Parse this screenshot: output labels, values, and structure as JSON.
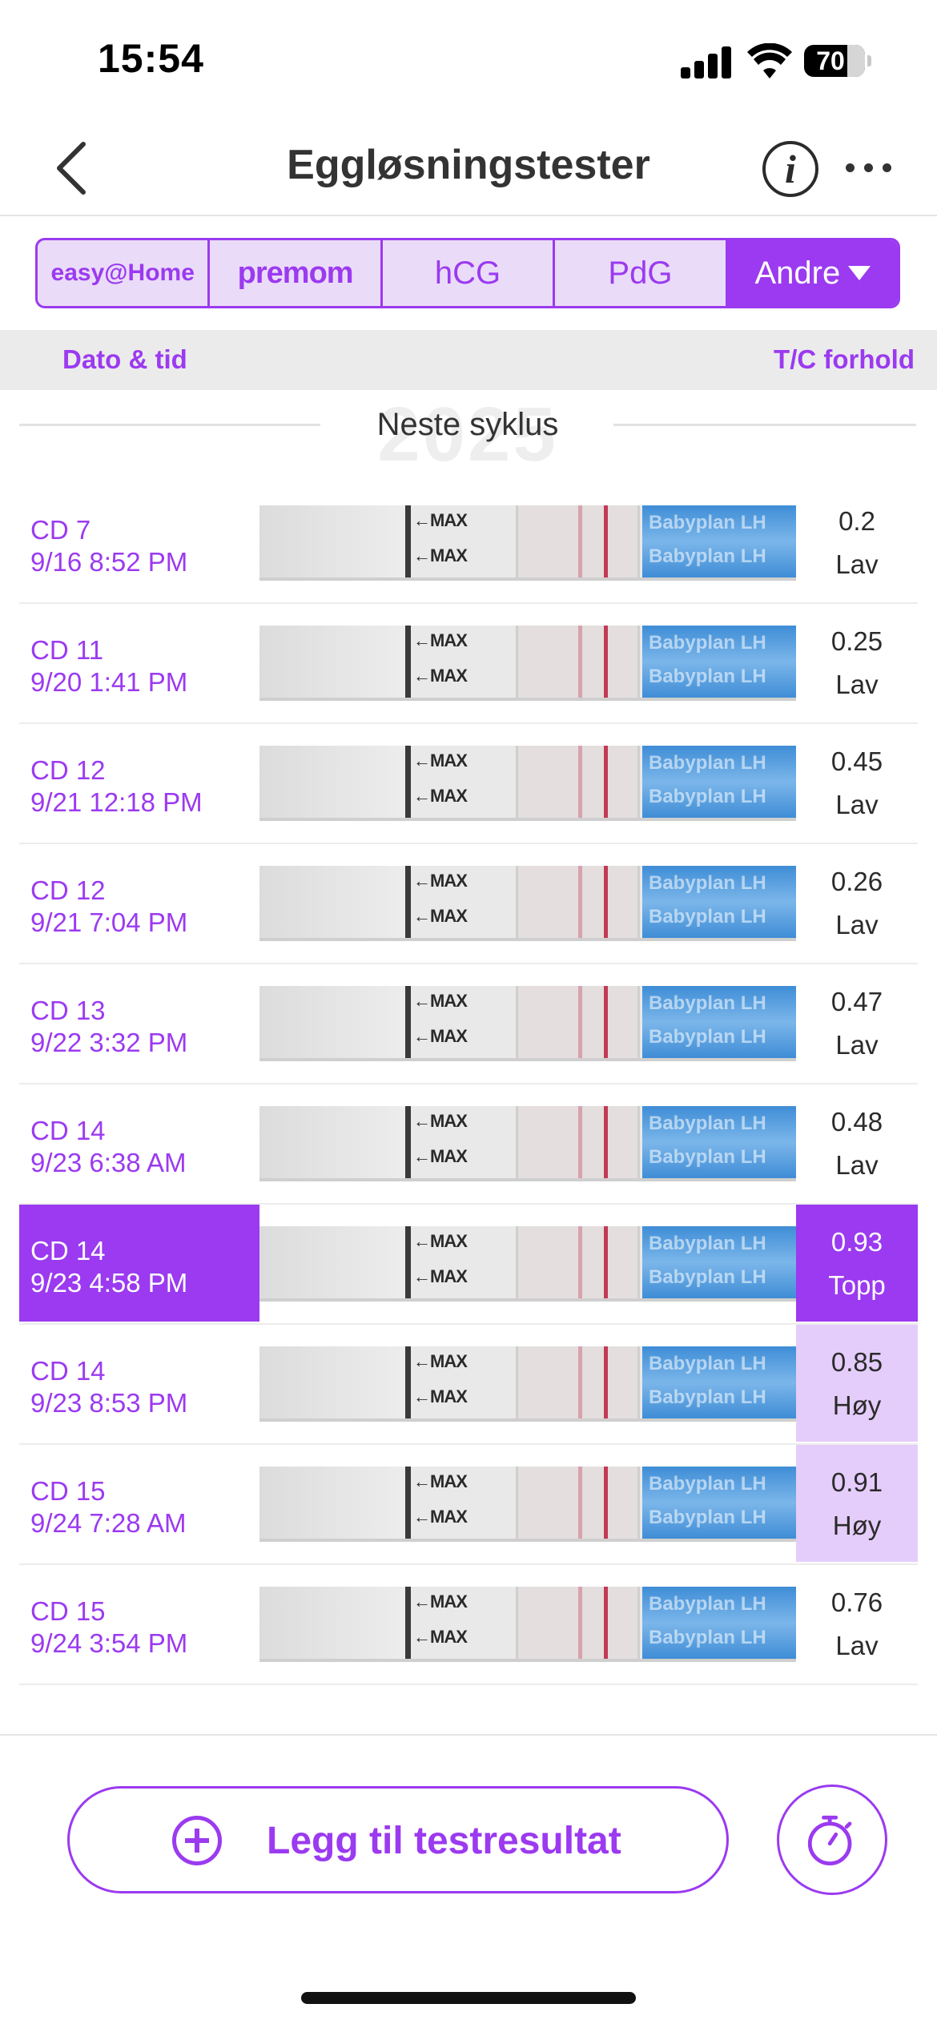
{
  "status_bar": {
    "time": "15:54",
    "battery": "70",
    "icons": [
      "signal-icon",
      "wifi-icon",
      "battery-icon"
    ]
  },
  "nav": {
    "title": "Eggløsningstester",
    "icons": [
      "back-chevron-icon",
      "info-icon",
      "more-icon"
    ]
  },
  "tabs": [
    {
      "label": "easy@Home",
      "selected": false
    },
    {
      "label": "premom",
      "selected": false
    },
    {
      "label": "hCG",
      "selected": false
    },
    {
      "label": "PdG",
      "selected": false
    },
    {
      "label": "Andre",
      "selected": true
    }
  ],
  "columns": {
    "left": "Dato & tid",
    "right": "T/C forhold"
  },
  "cycle": {
    "year": "2025",
    "label": "Neste syklus"
  },
  "rows": [
    {
      "cd": "CD 7",
      "datetime": "9/16 8:52 PM",
      "ratio": "0.2",
      "level": "Lav",
      "state": "normal"
    },
    {
      "cd": "CD 11",
      "datetime": "9/20 1:41 PM",
      "ratio": "0.25",
      "level": "Lav",
      "state": "normal"
    },
    {
      "cd": "CD 12",
      "datetime": "9/21 12:18 PM",
      "ratio": "0.45",
      "level": "Lav",
      "state": "normal"
    },
    {
      "cd": "CD 12",
      "datetime": "9/21 7:04 PM",
      "ratio": "0.26",
      "level": "Lav",
      "state": "normal"
    },
    {
      "cd": "CD 13",
      "datetime": "9/22 3:32 PM",
      "ratio": "0.47",
      "level": "Lav",
      "state": "normal"
    },
    {
      "cd": "CD 14",
      "datetime": "9/23 6:38 AM",
      "ratio": "0.48",
      "level": "Lav",
      "state": "normal"
    },
    {
      "cd": "CD 14",
      "datetime": "9/23 4:58 PM",
      "ratio": "0.93",
      "level": "Topp",
      "state": "peak"
    },
    {
      "cd": "CD 14",
      "datetime": "9/23 8:53 PM",
      "ratio": "0.85",
      "level": "Høy",
      "state": "high"
    },
    {
      "cd": "CD 15",
      "datetime": "9/24 7:28 AM",
      "ratio": "0.91",
      "level": "Høy",
      "state": "high"
    },
    {
      "cd": "CD 15",
      "datetime": "9/24 3:54 PM",
      "ratio": "0.76",
      "level": "Lav",
      "state": "normal"
    }
  ],
  "strip": {
    "max_label": "←MAX",
    "brand_text": "Babyplan LH"
  },
  "bottom": {
    "add_label": "Legg til testresultat",
    "icons": [
      "plus-circle-icon",
      "timer-icon"
    ]
  },
  "colors": {
    "accent": "#9b3af0",
    "accent_light": "#e5cdfb",
    "tab_background": "#eadcf8"
  }
}
